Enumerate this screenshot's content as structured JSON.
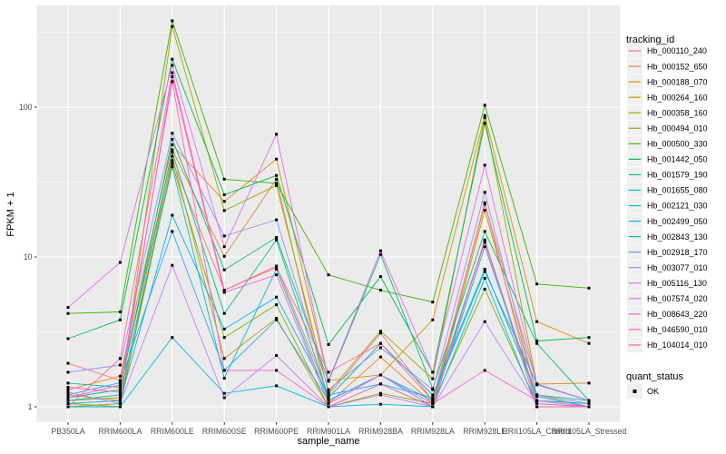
{
  "figure": {
    "background": "#FFFFFF",
    "panel_bg": "#EBEBEB",
    "grid_color": "#FFFFFF",
    "tick_color": "#333333",
    "tick_label_color": "#4D4D4D",
    "legend_key_bg": "#F0F0F0",
    "point_color": "#000000"
  },
  "chart_data": {
    "type": "line",
    "title": "",
    "xlabel": "sample_name",
    "ylabel": "FPKM + 1",
    "y_scale": "log10",
    "grid": true,
    "legend_position": "right",
    "y_ticks": [
      1,
      10,
      100
    ],
    "y_minor_ticks": [
      3.162,
      31.62,
      316.2
    ],
    "ylim": [
      0.79,
      480
    ],
    "categories": [
      "PB350LA",
      "RRIM600LA",
      "RRIM600LE",
      "RRIM600SE",
      "RRIM600PE",
      "RRIM901LA",
      "RRIM928BA",
      "RRIM928LA",
      "RRIM928LE",
      "RRII105LA_Control",
      "RRII105LA_Stressed"
    ],
    "series": [
      {
        "name": "Hb_000110_240",
        "color": "#F8766D",
        "values": [
          1.95,
          1.5,
          44,
          6.0,
          8.7,
          1.2,
          3.1,
          1.1,
          12.5,
          1.1,
          1.0
        ]
      },
      {
        "name": "Hb_000152_650",
        "color": "#EA8331",
        "values": [
          1.2,
          1.1,
          52,
          10.1,
          33,
          1.05,
          2.15,
          1.05,
          22.5,
          1.42,
          1.44
        ]
      },
      {
        "name": "Hb_000188_070",
        "color": "#D89000",
        "values": [
          1.3,
          1.6,
          56,
          23.5,
          45,
          1.5,
          1.63,
          3.8,
          88,
          3.7,
          2.65
        ]
      },
      {
        "name": "Hb_000264_160",
        "color": "#C09B00",
        "values": [
          1.05,
          1.0,
          47,
          2.1,
          3.9,
          1.0,
          1.42,
          1.0,
          20.5,
          1.2,
          1.0
        ]
      },
      {
        "name": "Hb_000358_160",
        "color": "#A3A500",
        "values": [
          1.1,
          1.15,
          346,
          20.4,
          30,
          1.25,
          3.2,
          1.54,
          85,
          1.42,
          1.1
        ]
      },
      {
        "name": "Hb_000494_010",
        "color": "#7CAE00",
        "values": [
          1.0,
          1.05,
          42,
          2.9,
          4.8,
          1.0,
          1.23,
          1.05,
          6.1,
          1.05,
          1.0
        ]
      },
      {
        "name": "Hb_000500_330",
        "color": "#39B600",
        "values": [
          4.2,
          4.3,
          377,
          33,
          31,
          7.6,
          6.0,
          5.0,
          103,
          6.6,
          6.2
        ]
      },
      {
        "name": "Hb_001442_050",
        "color": "#00BB4E",
        "values": [
          2.85,
          3.8,
          209,
          26,
          35,
          2.6,
          7.4,
          1.7,
          78,
          2.75,
          2.9
        ]
      },
      {
        "name": "Hb_001579_190",
        "color": "#00BF7D",
        "values": [
          1.15,
          1.3,
          61,
          8.2,
          13.5,
          1.48,
          10.4,
          1.32,
          14.8,
          2.65,
          1.1
        ]
      },
      {
        "name": "Hb_001655_080",
        "color": "#00C1A3",
        "values": [
          1.44,
          1.35,
          50,
          4.2,
          13.0,
          1.15,
          2.65,
          1.2,
          8.3,
          1.2,
          1.1
        ]
      },
      {
        "name": "Hb_002121_030",
        "color": "#00BFC4",
        "values": [
          1.1,
          1.2,
          40,
          1.55,
          8.3,
          1.1,
          1.63,
          1.1,
          12.9,
          1.1,
          1.05
        ]
      },
      {
        "name": "Hb_002499_050",
        "color": "#00BAE0",
        "values": [
          1.0,
          1.0,
          2.9,
          1.23,
          1.38,
          1.0,
          1.04,
          1.0,
          7.2,
          1.0,
          1.0
        ]
      },
      {
        "name": "Hb_002843_130",
        "color": "#00B0F6",
        "values": [
          1.05,
          1.1,
          19,
          3.3,
          5.4,
          1.2,
          1.42,
          1.15,
          8.0,
          1.42,
          1.1
        ]
      },
      {
        "name": "Hb_002918_170",
        "color": "#35A2FF",
        "values": [
          1.2,
          1.45,
          14.8,
          1.75,
          3.8,
          1.1,
          1.63,
          1.0,
          11.7,
          1.17,
          1.0
        ]
      },
      {
        "name": "Hb_003077_010",
        "color": "#9590FF",
        "values": [
          1.7,
          1.9,
          67,
          13.8,
          17.7,
          1.3,
          2.48,
          1.3,
          27,
          1.2,
          1.05
        ]
      },
      {
        "name": "Hb_005116_130",
        "color": "#C77CFF",
        "values": [
          1.25,
          1.05,
          8.8,
          1.15,
          2.2,
          1.0,
          1.2,
          1.0,
          3.7,
          1.05,
          1.0
        ]
      },
      {
        "name": "Hb_007574_020",
        "color": "#E76BF3",
        "values": [
          4.6,
          9.2,
          190,
          11.7,
          66,
          1.5,
          11.0,
          1.7,
          41,
          1.4,
          1.1
        ]
      },
      {
        "name": "Hb_008643_220",
        "color": "#FA62DB",
        "values": [
          1.35,
          1.25,
          160,
          5.8,
          7.6,
          1.05,
          1.63,
          1.05,
          1.75,
          1.1,
          1.0
        ]
      },
      {
        "name": "Hb_046590_010",
        "color": "#FF62BC",
        "values": [
          1.15,
          1.4,
          148,
          1.75,
          1.75,
          1.0,
          1.42,
          1.0,
          13.0,
          1.0,
          1.0
        ]
      },
      {
        "name": "Hb_104014_010",
        "color": "#FF6A98",
        "values": [
          1.0,
          2.1,
          170,
          6.0,
          8.5,
          1.7,
          2.65,
          1.1,
          23,
          1.0,
          1.0
        ]
      }
    ],
    "point_shape": "square",
    "legend": {
      "tracking_title": "tracking_id",
      "quant_title": "quant_status",
      "quant_items": [
        {
          "label": "OK"
        }
      ]
    }
  }
}
